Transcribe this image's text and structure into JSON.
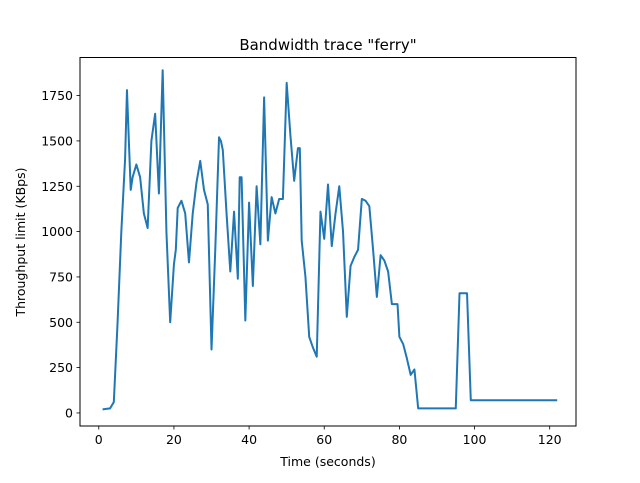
{
  "chart_data": {
    "type": "line",
    "title": "Bandwidth trace \"ferry\"",
    "xlabel": "Time (seconds)",
    "ylabel": "Throughput limit (KBps)",
    "xlim": [
      -5,
      127
    ],
    "ylim": [
      -72,
      1960
    ],
    "xticks": [
      0,
      20,
      40,
      60,
      80,
      100,
      120
    ],
    "yticks": [
      0,
      250,
      500,
      750,
      1000,
      1250,
      1500,
      1750
    ],
    "grid": false,
    "legend": "none",
    "line_color": "#1f77b4",
    "series": [
      {
        "x": [
          1,
          3,
          4,
          5,
          6,
          7,
          7.5,
          8,
          8.5,
          9,
          10,
          11,
          12,
          13,
          14,
          15,
          16,
          17,
          18,
          19,
          20,
          20.5,
          21,
          22,
          23,
          24,
          25,
          26,
          27,
          28,
          29,
          30,
          31,
          32,
          32.5,
          33,
          34,
          35,
          36,
          37,
          37.5,
          38,
          39,
          40,
          41,
          42,
          43,
          44,
          45,
          46,
          47,
          48,
          49,
          50,
          51,
          52,
          53,
          53.5,
          54,
          55,
          56,
          57,
          58,
          59,
          60,
          61,
          62,
          63,
          64,
          65,
          66,
          67,
          68,
          69,
          70,
          71,
          72,
          73,
          74,
          75,
          76,
          77,
          78,
          79,
          79.5,
          80,
          81,
          82,
          83,
          84,
          85,
          86,
          90,
          95,
          96,
          97,
          98,
          99,
          100,
          105,
          110,
          115,
          120,
          122
        ],
        "y": [
          20,
          25,
          60,
          500,
          1000,
          1400,
          1780,
          1500,
          1230,
          1300,
          1370,
          1300,
          1100,
          1020,
          1500,
          1650,
          1210,
          1890,
          1000,
          500,
          820,
          900,
          1130,
          1170,
          1100,
          830,
          1100,
          1270,
          1390,
          1230,
          1150,
          350,
          900,
          1520,
          1500,
          1450,
          1100,
          780,
          1110,
          740,
          1300,
          1300,
          510,
          1160,
          700,
          1250,
          930,
          1740,
          950,
          1190,
          1100,
          1180,
          1180,
          1820,
          1530,
          1280,
          1460,
          1460,
          950,
          750,
          420,
          360,
          310,
          1110,
          960,
          1260,
          920,
          1100,
          1250,
          1000,
          530,
          810,
          860,
          900,
          1180,
          1170,
          1140,
          900,
          640,
          870,
          840,
          780,
          600,
          600,
          600,
          420,
          380,
          300,
          210,
          240,
          25,
          25,
          25,
          25,
          660,
          660,
          660,
          70,
          70,
          70,
          70,
          70,
          70,
          70
        ]
      }
    ]
  }
}
